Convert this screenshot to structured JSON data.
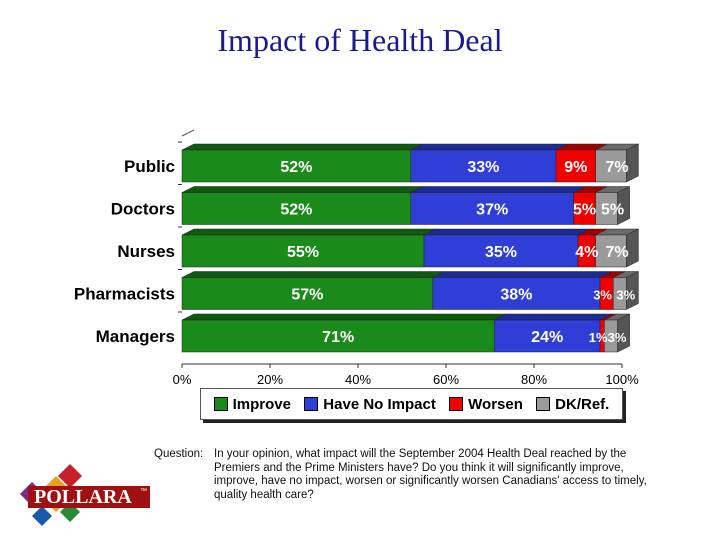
{
  "title": "Impact of Health Deal",
  "question": {
    "label": "Question:",
    "text": "In your opinion, what impact will the September 2004 Health Deal reached by the Premiers and the Prime Ministers have?  Do you think it will significantly improve, improve, have no impact, worsen or significantly worsen Canadians' access to timely, quality health care?"
  },
  "logo": {
    "text": "POLLARA",
    "mark": "™"
  },
  "colors": {
    "improve": "#1a8a1a",
    "no_impact": "#2e3ed6",
    "worsen": "#f00000",
    "dk": "#9a9a9a"
  },
  "chart_data": {
    "type": "bar",
    "orientation": "horizontal",
    "stacked": true,
    "categories": [
      "Public",
      "Doctors",
      "Nurses",
      "Pharmacists",
      "Managers"
    ],
    "series": [
      {
        "name": "Improve",
        "values": [
          52,
          52,
          55,
          57,
          71
        ],
        "labels": [
          "52%",
          "52%",
          "55%",
          "57%",
          "71%"
        ]
      },
      {
        "name": "Have No Impact",
        "values": [
          33,
          37,
          35,
          38,
          24
        ],
        "labels": [
          "33%",
          "37%",
          "35%",
          "38%",
          "24%"
        ]
      },
      {
        "name": "Worsen",
        "values": [
          9,
          5,
          4,
          3,
          1
        ],
        "labels": [
          "9%",
          "5%",
          "4%",
          "3%",
          "1%"
        ]
      },
      {
        "name": "DK/Ref.",
        "values": [
          7,
          5,
          7,
          3,
          3
        ],
        "labels": [
          "7%",
          "5%",
          "7%",
          "3%",
          "3%"
        ]
      }
    ],
    "xlim": [
      0,
      100
    ],
    "xticks": [
      "0%",
      "20%",
      "40%",
      "60%",
      "80%",
      "100%"
    ],
    "legend": "bottom",
    "grid": false
  }
}
